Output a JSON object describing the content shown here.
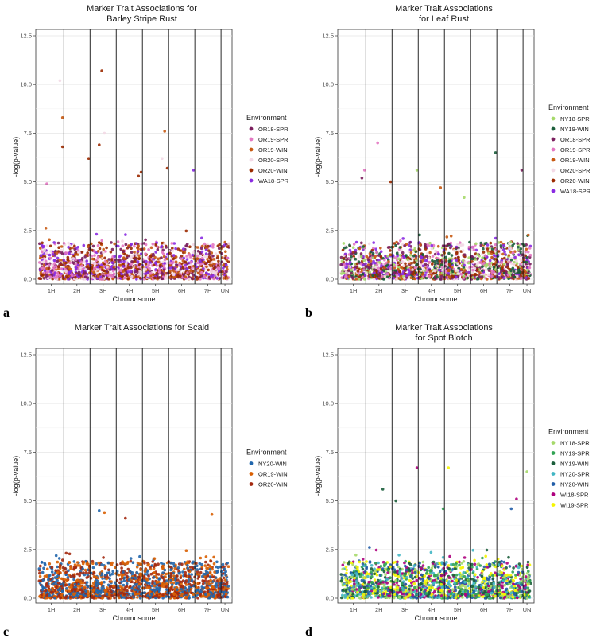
{
  "chart_data": [
    {
      "panel": "a",
      "type": "scatter",
      "title": [
        "Marker Trait Associations for",
        "Barley Stripe Rust"
      ],
      "xlabel": "Chromosome",
      "ylabel": "-log(p-value)",
      "ylim": [
        0,
        12.5
      ],
      "yticks": [
        "0.0",
        "2.5",
        "5.0",
        "7.5",
        "10.0",
        "12.5"
      ],
      "categories": [
        "1H",
        "2H",
        "3H",
        "4H",
        "5H",
        "6H",
        "7H",
        "UN"
      ],
      "threshold": 4.85,
      "legend_title": "Environment",
      "series": [
        {
          "name": "OR18-SPR",
          "color": "#7b1f5e"
        },
        {
          "name": "OR19-SPR",
          "color": "#e377c2"
        },
        {
          "name": "OR19-WIN",
          "color": "#c85a12"
        },
        {
          "name": "OR20-SPR",
          "color": "#f3d9e6"
        },
        {
          "name": "OR20-WIN",
          "color": "#9c2a00"
        },
        {
          "name": "WA18-SPR",
          "color": "#8a2be2"
        }
      ],
      "peaks": [
        [
          0.8,
          10.2,
          3
        ],
        [
          0.9,
          8.3,
          2
        ],
        [
          0.9,
          6.8,
          4
        ],
        [
          2.4,
          10.7,
          4
        ],
        [
          2.3,
          6.9,
          4
        ],
        [
          1.9,
          6.2,
          4
        ],
        [
          3.9,
          5.5,
          4
        ],
        [
          3.8,
          5.3,
          4
        ],
        [
          4.8,
          7.6,
          2
        ],
        [
          4.7,
          6.2,
          3
        ],
        [
          4.9,
          5.7,
          4
        ],
        [
          5.9,
          5.6,
          5
        ],
        [
          2.5,
          7.5,
          3
        ],
        [
          0.3,
          4.9,
          1
        ]
      ]
    },
    {
      "panel": "b",
      "type": "scatter",
      "title": [
        "Marker Trait Associations",
        "for Leaf Rust"
      ],
      "xlabel": "Chromosome",
      "ylabel": "-log(p-value)",
      "ylim": [
        0,
        12.5
      ],
      "yticks": [
        "0.0",
        "2.5",
        "5.0",
        "7.5",
        "10.0",
        "12.5"
      ],
      "categories": [
        "1H",
        "2H",
        "3H",
        "4H",
        "5H",
        "6H",
        "7H",
        "UN"
      ],
      "threshold": 4.85,
      "legend_title": "Environment",
      "series": [
        {
          "name": "NY18-SPR",
          "color": "#a6d96a"
        },
        {
          "name": "NY19-WIN",
          "color": "#1b5e3b"
        },
        {
          "name": "OR18-SPR",
          "color": "#7b1f5e"
        },
        {
          "name": "OR19-SPR",
          "color": "#e377c2"
        },
        {
          "name": "OR19-WIN",
          "color": "#c85a12"
        },
        {
          "name": "OR20-SPR",
          "color": "#f3d9e6"
        },
        {
          "name": "OR20-WIN",
          "color": "#9c2a00"
        },
        {
          "name": "WA18-SPR",
          "color": "#8a2be2"
        }
      ],
      "peaks": [
        [
          0.9,
          5.6,
          3
        ],
        [
          0.8,
          5.2,
          2
        ],
        [
          1.4,
          7.0,
          3
        ],
        [
          1.9,
          5.0,
          6
        ],
        [
          2.9,
          5.6,
          0
        ],
        [
          3.8,
          4.7,
          4
        ],
        [
          4.7,
          4.2,
          0
        ],
        [
          5.9,
          6.5,
          1
        ],
        [
          6.9,
          5.6,
          2
        ]
      ]
    },
    {
      "panel": "c",
      "type": "scatter",
      "title": [
        "Marker Trait Associations for Scald"
      ],
      "xlabel": "Chromosome",
      "ylabel": "-log(p-value)",
      "ylim": [
        0,
        12.5
      ],
      "yticks": [
        "0.0",
        "2.5",
        "5.0",
        "7.5",
        "10.0",
        "12.5"
      ],
      "categories": [
        "1H",
        "2H",
        "3H",
        "4H",
        "5H",
        "6H",
        "7H",
        "UN"
      ],
      "threshold": 4.85,
      "legend_title": "Environment",
      "series": [
        {
          "name": "NY20-WIN",
          "color": "#2166ac"
        },
        {
          "name": "OR19-WIN",
          "color": "#d95f02"
        },
        {
          "name": "OR20-WIN",
          "color": "#a3290f"
        }
      ],
      "peaks": [
        [
          2.3,
          4.5,
          0
        ],
        [
          2.5,
          4.4,
          1
        ],
        [
          6.6,
          4.3,
          1
        ],
        [
          3.3,
          4.1,
          2
        ]
      ]
    },
    {
      "panel": "d",
      "type": "scatter",
      "title": [
        "Marker Trait Associations",
        "for Spot Blotch"
      ],
      "xlabel": "Chromosome",
      "ylabel": "-log(p-value)",
      "ylim": [
        0,
        12.5
      ],
      "yticks": [
        "0.0",
        "2.5",
        "5.0",
        "7.5",
        "10.0",
        "12.5"
      ],
      "categories": [
        "1H",
        "2H",
        "3H",
        "4H",
        "5H",
        "6H",
        "7H",
        "UN"
      ],
      "threshold": 4.85,
      "legend_title": "Environment",
      "series": [
        {
          "name": "NY18-SPR",
          "color": "#a6d96a"
        },
        {
          "name": "NY19-SPR",
          "color": "#31a354"
        },
        {
          "name": "NY19-WIN",
          "color": "#1b5e3b"
        },
        {
          "name": "NY20-SPR",
          "color": "#41b6c4"
        },
        {
          "name": "NY20-WIN",
          "color": "#225ea8"
        },
        {
          "name": "WI18-SPR",
          "color": "#ae017e"
        },
        {
          "name": "WI19-SPR",
          "color": "#f5f500"
        }
      ],
      "peaks": [
        [
          1.6,
          5.6,
          2
        ],
        [
          2.1,
          5.0,
          2
        ],
        [
          2.9,
          6.7,
          5
        ],
        [
          4.1,
          6.7,
          6
        ],
        [
          3.9,
          4.6,
          1
        ],
        [
          6.7,
          5.1,
          5
        ],
        [
          7.1,
          6.5,
          0
        ],
        [
          6.5,
          4.6,
          4
        ]
      ]
    }
  ],
  "panel_letters": [
    "a",
    "b",
    "c",
    "d"
  ]
}
